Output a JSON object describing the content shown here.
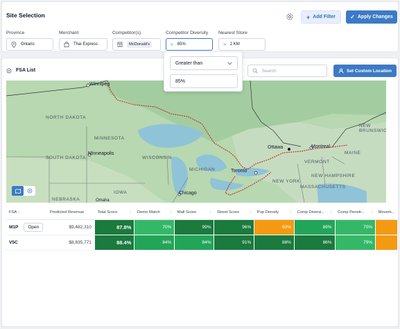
{
  "header": {
    "title": "Site Selection",
    "add_filter_label": "Add Filter",
    "apply_label": "Apply Changes"
  },
  "filters": [
    {
      "label": "Province",
      "value": "Ontario",
      "icon": "map-pin-icon"
    },
    {
      "label": "Merchant",
      "value": "Thai Express",
      "icon": "bag-icon"
    },
    {
      "label": "Competitor(s)",
      "value": "McDonald's",
      "icon": "store-icon"
    },
    {
      "label": "Competitor Diversity",
      "prefix": ">",
      "value": "85%"
    },
    {
      "label": "Nearest Store",
      "prefix": ">",
      "value": "2 KM"
    }
  ],
  "diversity_dropdown": {
    "operator": "Greater than",
    "value": "85%"
  },
  "fsa": {
    "title": "FSA List",
    "search_placeholder": "Search",
    "custom_location_label": "Set Custom Location"
  },
  "map": {
    "regions": [
      "NORTH DAKOTA",
      "MINNESOTA",
      "SOUTH DAKOTA",
      "WISCONSIN",
      "MICHIGAN",
      "IOWA",
      "NEBRASKA",
      "NEW YORK",
      "VERMONT",
      "NEW HAMPSHIRE",
      "MASSACHUSETTS",
      "MAINE",
      "NEW BRUNSWICK"
    ],
    "cities": [
      "Winnipeg",
      "Minneapolis",
      "Chicago",
      "Toronto",
      "Ottawa",
      "Montreal",
      "Omaha"
    ]
  },
  "table": {
    "columns": [
      "FSA",
      "Predicted Revenue",
      "Total Score",
      "Demo Match",
      "Mall Score",
      "Street Score",
      "Pop Density",
      "Comp Diversi...",
      "Comp Penetr...",
      "Movem..."
    ],
    "open_label": "Open",
    "rows": [
      {
        "fsa": "M1P",
        "revenue": "$9,482,310",
        "total": "87.8%",
        "scores": [
          "70%",
          "99%",
          "96%",
          "60%",
          "89%",
          "70%",
          ""
        ]
      },
      {
        "fsa": "V5C",
        "revenue": "$8,835,771",
        "total": "88.4%",
        "scores": [
          "84%",
          "84%",
          "91%",
          "88%",
          "86%",
          "79%",
          ""
        ]
      }
    ]
  },
  "colors": {
    "accent": "#3d7ac5",
    "dark_green": "#1b7a3e",
    "green": "#22a559",
    "light_green": "#34b868",
    "orange": "#f39a12"
  }
}
